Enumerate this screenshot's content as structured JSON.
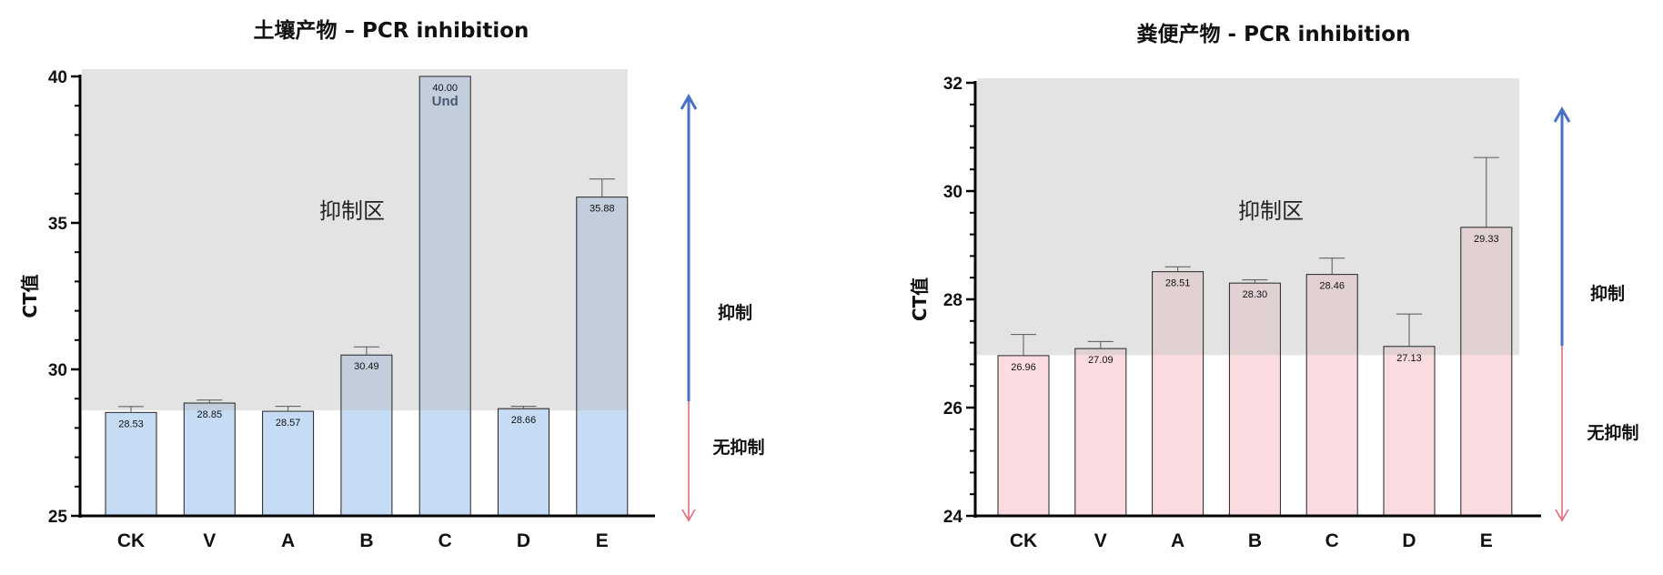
{
  "chart_data": [
    {
      "type": "bar",
      "title": "土壤产物 – PCR inhibition",
      "ylabel": "CT值",
      "xlabel": "",
      "categories": [
        "CK",
        "V",
        "A",
        "B",
        "C",
        "D",
        "E"
      ],
      "values": [
        28.53,
        28.85,
        28.57,
        30.49,
        40.0,
        28.66,
        35.88
      ],
      "error_upper": [
        28.73,
        28.95,
        28.74,
        30.77,
        40.0,
        28.74,
        36.5
      ],
      "value_labels": [
        "28.53",
        "28.85",
        "28.57",
        "30.49",
        "40.00",
        "28.66",
        "35.88"
      ],
      "annotations": [
        {
          "category": "C",
          "text": "Und"
        }
      ],
      "ylim": [
        25,
        40
      ],
      "yticks": [
        25,
        30,
        35,
        40
      ],
      "inhibition_threshold": 28.6,
      "zone_label": "抑制区",
      "arrow_up_label": "抑制",
      "arrow_down_label": "无抑制",
      "grid": false,
      "colors": {
        "bar": "#c6dbf4",
        "zone": "#e3e3e3",
        "bar_in_zone": "#c3cedd",
        "arrow_up": "#4a72c4",
        "arrow_down": "#e06a7a"
      }
    },
    {
      "type": "bar",
      "title": "粪便产物 - PCR inhibition",
      "ylabel": "CT值",
      "xlabel": "",
      "categories": [
        "CK",
        "V",
        "A",
        "B",
        "C",
        "D",
        "E"
      ],
      "values": [
        26.96,
        27.09,
        28.51,
        28.3,
        28.46,
        27.13,
        29.33
      ],
      "error_upper": [
        27.35,
        27.22,
        28.6,
        28.36,
        28.76,
        27.73,
        30.62
      ],
      "value_labels": [
        "26.96",
        "27.09",
        "28.51",
        "28.30",
        "28.46",
        "27.13",
        "29.33"
      ],
      "annotations": [],
      "ylim": [
        24,
        32
      ],
      "yticks": [
        24,
        26,
        28,
        30,
        32
      ],
      "inhibition_threshold": 26.97,
      "zone_label": "抑制区",
      "arrow_up_label": "抑制",
      "arrow_down_label": "无抑制",
      "grid": false,
      "colors": {
        "bar": "#fbdde1",
        "zone": "#e3e3e3",
        "bar_in_zone": "#e1d1d3",
        "arrow_up": "#4a72c4",
        "arrow_down": "#e06a7a"
      }
    }
  ]
}
